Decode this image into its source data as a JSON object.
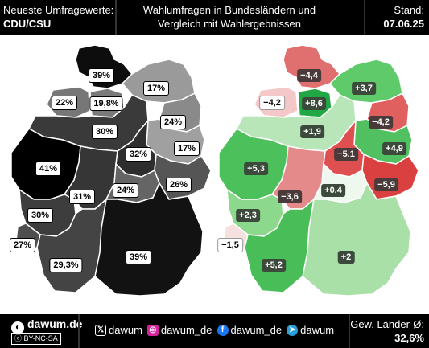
{
  "header": {
    "left_line1": "Neueste Umfragewerte:",
    "left_line2": "CDU/CSU",
    "center_line1": "Wahlumfragen in Bundesländern und",
    "center_line2": "Vergleich mit Wahlergebnissen",
    "right_line1": "Stand:",
    "right_line2": "07.06.25"
  },
  "poll_map": {
    "states": [
      {
        "id": "SH",
        "label": "39%",
        "color": "#0d0d0d"
      },
      {
        "id": "HH",
        "label": "22%",
        "color": "#777777"
      },
      {
        "id": "HB",
        "label": "19,8%",
        "color": "#7a7a7a"
      },
      {
        "id": "NI",
        "label": "30%",
        "color": "#3a3a3a"
      },
      {
        "id": "MV",
        "label": "17%",
        "color": "#9a9a9a"
      },
      {
        "id": "BE",
        "label": "24%",
        "color": "#8a8a8a"
      },
      {
        "id": "BB",
        "label": "17%",
        "color": "#a0a0a0"
      },
      {
        "id": "ST",
        "label": "32%",
        "color": "#2e2e2e"
      },
      {
        "id": "NW",
        "label": "41%",
        "color": "#000000"
      },
      {
        "id": "HE",
        "label": "31%",
        "color": "#363636"
      },
      {
        "id": "TH",
        "label": "24%",
        "color": "#656565"
      },
      {
        "id": "SN",
        "label": "26%",
        "color": "#555555"
      },
      {
        "id": "RP",
        "label": "30%",
        "color": "#3d3d3d"
      },
      {
        "id": "SL",
        "label": "27%",
        "color": "#4e4e4e"
      },
      {
        "id": "BW",
        "label": "29,3%",
        "color": "#444444"
      },
      {
        "id": "BY",
        "label": "39%",
        "color": "#121212"
      }
    ]
  },
  "diff_map": {
    "states": [
      {
        "id": "SH",
        "label": "−4,4",
        "color": "#e07070",
        "kind": "neg"
      },
      {
        "id": "HH",
        "label": "−4,2",
        "color": "#f4c8c8",
        "kind": "light"
      },
      {
        "id": "HB",
        "label": "+8,6",
        "color": "#22a745",
        "kind": "pos"
      },
      {
        "id": "NI",
        "label": "+1,9",
        "color": "#b8e6b8",
        "kind": "pos"
      },
      {
        "id": "MV",
        "label": "+3,7",
        "color": "#5fca6a",
        "kind": "pos"
      },
      {
        "id": "BE",
        "label": "−4,2",
        "color": "#e06060",
        "kind": "neg"
      },
      {
        "id": "BB",
        "label": "+4,9",
        "color": "#50c060",
        "kind": "pos"
      },
      {
        "id": "ST",
        "label": "−5,1",
        "color": "#de5050",
        "kind": "neg"
      },
      {
        "id": "NW",
        "label": "+5,3",
        "color": "#4cc05a",
        "kind": "pos"
      },
      {
        "id": "HE",
        "label": "−3,6",
        "color": "#e58a8a",
        "kind": "neg"
      },
      {
        "id": "TH",
        "label": "+0,4",
        "color": "#eef8ee",
        "kind": "pos"
      },
      {
        "id": "SN",
        "label": "−5,9",
        "color": "#db4040",
        "kind": "neg"
      },
      {
        "id": "RP",
        "label": "+2,3",
        "color": "#8cd88c",
        "kind": "pos"
      },
      {
        "id": "SL",
        "label": "−1,5",
        "color": "#f6e0e0",
        "kind": "light"
      },
      {
        "id": "BW",
        "label": "+5,2",
        "color": "#48bd58",
        "kind": "pos"
      },
      {
        "id": "BY",
        "label": "+2",
        "color": "#a8e0a8",
        "kind": "pos"
      }
    ]
  },
  "footer": {
    "brand": "dawum.de",
    "license": "BY-NC-SA",
    "socials": [
      {
        "icon": "x-icon",
        "text": "dawum"
      },
      {
        "icon": "instagram-icon",
        "text": "dawum_de"
      },
      {
        "icon": "facebook-icon",
        "text": "dawum_de"
      },
      {
        "icon": "telegram-icon",
        "text": "dawum"
      }
    ],
    "avg_label": "Gew. Länder-Ø:",
    "avg_value": "32,6%"
  }
}
